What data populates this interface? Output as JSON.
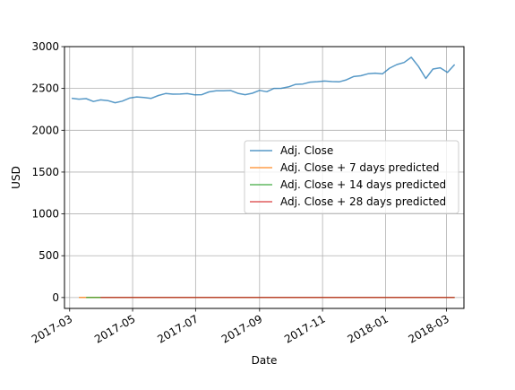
{
  "chart_data": {
    "type": "line",
    "xlabel": "Date",
    "ylabel": "USD",
    "xlim": [
      "2017-02-24",
      "2018-03-18"
    ],
    "ylim": [
      -130,
      3000
    ],
    "grid": true,
    "legend_position": "center-right",
    "x_ticks": [
      "2017-03-01",
      "2017-05-01",
      "2017-07-01",
      "2017-09-01",
      "2017-11-01",
      "2018-01-01",
      "2018-03-01"
    ],
    "x_tick_labels": [
      "2017-03",
      "2017-05",
      "2017-07",
      "2017-09",
      "2017-11",
      "2018-01",
      "2018-03"
    ],
    "y_ticks": [
      0,
      500,
      1000,
      1500,
      2000,
      2500,
      3000
    ],
    "y_tick_labels": [
      "0",
      "500",
      "1000",
      "1500",
      "2000",
      "2500",
      "3000"
    ],
    "series": [
      {
        "name": "Adj. Close",
        "color": "#1f77b4",
        "x": [
          "2017-03-03",
          "2017-03-10",
          "2017-03-17",
          "2017-03-24",
          "2017-03-31",
          "2017-04-07",
          "2017-04-14",
          "2017-04-21",
          "2017-04-28",
          "2017-05-05",
          "2017-05-12",
          "2017-05-19",
          "2017-05-26",
          "2017-06-02",
          "2017-06-09",
          "2017-06-16",
          "2017-06-23",
          "2017-06-30",
          "2017-07-07",
          "2017-07-14",
          "2017-07-21",
          "2017-07-28",
          "2017-08-04",
          "2017-08-11",
          "2017-08-18",
          "2017-08-25",
          "2017-09-01",
          "2017-09-08",
          "2017-09-15",
          "2017-09-22",
          "2017-09-29",
          "2017-10-06",
          "2017-10-13",
          "2017-10-20",
          "2017-10-27",
          "2017-11-03",
          "2017-11-10",
          "2017-11-17",
          "2017-11-24",
          "2017-12-01",
          "2017-12-08",
          "2017-12-15",
          "2017-12-22",
          "2017-12-29",
          "2018-01-05",
          "2018-01-12",
          "2018-01-19",
          "2018-01-26",
          "2018-02-02",
          "2018-02-09",
          "2018-02-16",
          "2018-02-23",
          "2018-03-02",
          "2018-03-09"
        ],
        "y": [
          2383,
          2372,
          2378,
          2344,
          2363,
          2355,
          2329,
          2348,
          2385,
          2399,
          2391,
          2381,
          2416,
          2439,
          2432,
          2433,
          2438,
          2423,
          2425,
          2459,
          2473,
          2472,
          2476,
          2441,
          2425,
          2443,
          2477,
          2461,
          2500,
          2502,
          2519,
          2549,
          2553,
          2575,
          2581,
          2588,
          2582,
          2579,
          2602,
          2642,
          2652,
          2675,
          2683,
          2674,
          2743,
          2786,
          2810,
          2872,
          2762,
          2620,
          2732,
          2747,
          2691,
          2786
        ]
      },
      {
        "name": "Adj. Close + 7 days predicted",
        "color": "#ff7f0e",
        "x": [
          "2017-03-10",
          "2018-03-09"
        ],
        "y": [
          2,
          2
        ]
      },
      {
        "name": "Adj. Close + 14 days predicted",
        "color": "#2ca02c",
        "x": [
          "2017-03-17",
          "2018-03-09"
        ],
        "y": [
          2,
          2
        ]
      },
      {
        "name": "Adj. Close + 28 days predicted",
        "color": "#d62728",
        "x": [
          "2017-03-31",
          "2018-03-09"
        ],
        "y": [
          2,
          2
        ]
      }
    ]
  }
}
